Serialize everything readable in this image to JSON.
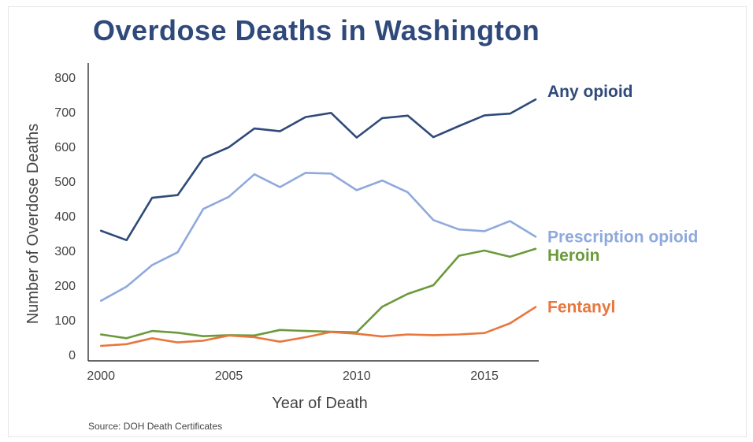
{
  "chart_data": {
    "type": "line",
    "title": "Overdose Deaths in Washington",
    "xlabel": "Year of Death",
    "ylabel": "Number of Overdose Deaths",
    "source": "Source: DOH Death Certificates",
    "x": [
      2000,
      2001,
      2002,
      2003,
      2004,
      2005,
      2006,
      2007,
      2008,
      2009,
      2010,
      2011,
      2012,
      2013,
      2014,
      2015,
      2016,
      2017
    ],
    "x_ticks": [
      "2000",
      "2005",
      "2010",
      "2015"
    ],
    "y_ticks": [
      "0",
      "100",
      "200",
      "300",
      "400",
      "500",
      "600",
      "700",
      "800"
    ],
    "xlim": [
      1999.5,
      2017
    ],
    "ylim": [
      0,
      800
    ],
    "grid": false,
    "legend": "direct labels at line ends (right)",
    "series": [
      {
        "name": "Any opioid",
        "color": "#2f4a7a",
        "values": [
          357,
          330,
          452,
          460,
          566,
          598,
          652,
          644,
          685,
          697,
          626,
          682,
          689,
          627,
          659,
          690,
          695,
          736
        ]
      },
      {
        "name": "Prescription opioid",
        "color": "#8fa9dc",
        "values": [
          155,
          196,
          258,
          295,
          420,
          455,
          520,
          483,
          524,
          522,
          474,
          502,
          468,
          388,
          361,
          356,
          385,
          340
        ]
      },
      {
        "name": "Heroin",
        "color": "#6b9a3c",
        "values": [
          58,
          47,
          68,
          63,
          53,
          56,
          55,
          71,
          68,
          66,
          64,
          138,
          175,
          200,
          285,
          300,
          282,
          305
        ]
      },
      {
        "name": "Fentanyl",
        "color": "#e8763d",
        "values": [
          25,
          30,
          47,
          35,
          40,
          55,
          50,
          37,
          50,
          65,
          60,
          52,
          58,
          56,
          58,
          62,
          90,
          137
        ]
      }
    ]
  }
}
